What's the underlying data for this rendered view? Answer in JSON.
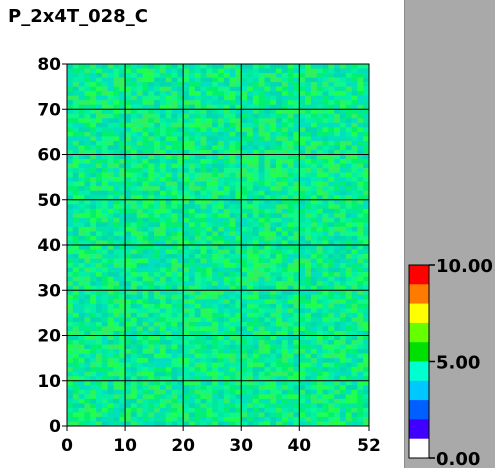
{
  "title": "P_2x4T_028_C",
  "chart_data": {
    "type": "heatmap",
    "title": "P_2x4T_028_C",
    "xlim": [
      0,
      52
    ],
    "ylim": [
      0,
      80
    ],
    "x_ticks": [
      "0",
      "10",
      "20",
      "30",
      "40",
      "52"
    ],
    "y_ticks": [
      "0",
      "10",
      "20",
      "30",
      "40",
      "50",
      "60",
      "70",
      "80"
    ],
    "grid": true,
    "value_range": [
      0.0,
      10.0
    ],
    "approx_value": 5.0,
    "colorbar": {
      "labels": [
        "10.00",
        "5.00",
        "0.00"
      ],
      "colors": [
        "#ff0000",
        "#ff7a00",
        "#ffff00",
        "#66ff00",
        "#00e000",
        "#00ffd0",
        "#00c8ff",
        "#0060ff",
        "#4000ff",
        "#ffffff"
      ]
    }
  }
}
